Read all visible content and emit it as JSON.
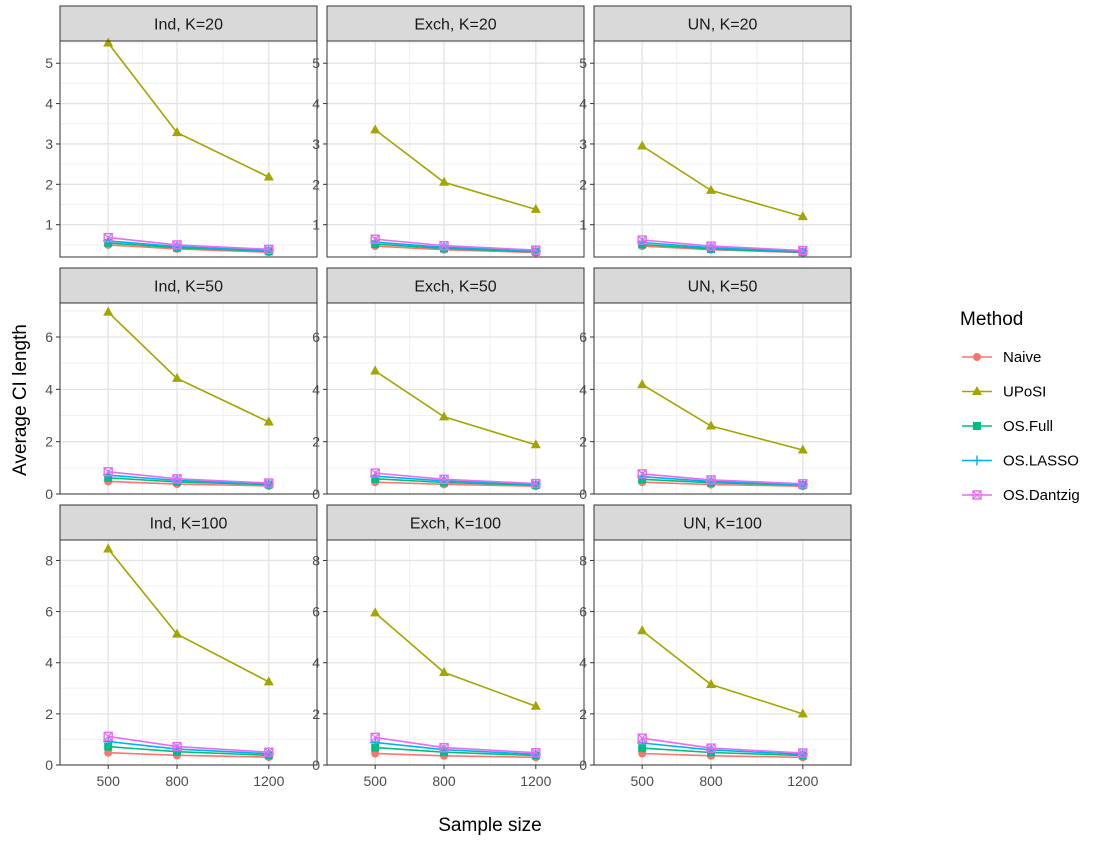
{
  "chart_data": {
    "type": "line",
    "xlabel": "Sample size",
    "ylabel": "Average CI length",
    "x": [
      500,
      800,
      1200
    ],
    "legend": {
      "title": "Method",
      "placement": "right",
      "items": [
        "Naive",
        "UPoSI",
        "OS.Full",
        "OS.LASSO",
        "OS.Dantzig"
      ]
    },
    "colors": {
      "Naive": "#F8766D",
      "UPoSI": "#A3A500",
      "OS.Full": "#00BF7D",
      "OS.LASSO": "#00B0F6",
      "OS.Dantzig": "#E76BF3"
    },
    "markers": {
      "Naive": "circle",
      "UPoSI": "triangle",
      "OS.Full": "square",
      "OS.LASSO": "plus",
      "OS.Dantzig": "boxed-cross"
    },
    "grid": true,
    "rows": [
      {
        "ylim": [
          0.2,
          5.55
        ],
        "ybreaks": [
          1,
          2,
          3,
          4,
          5
        ],
        "panels": [
          {
            "title": "Ind, K=20",
            "series": [
              {
                "name": "Naive",
                "values": [
                  0.5,
                  0.4,
                  0.32
                ]
              },
              {
                "name": "UPoSI",
                "values": [
                  5.5,
                  3.28,
                  2.18
                ]
              },
              {
                "name": "OS.Full",
                "values": [
                  0.55,
                  0.43,
                  0.34
                ]
              },
              {
                "name": "OS.LASSO",
                "values": [
                  0.6,
                  0.46,
                  0.36
                ]
              },
              {
                "name": "OS.Dantzig",
                "values": [
                  0.68,
                  0.5,
                  0.39
                ]
              }
            ]
          },
          {
            "title": "Exch, K=20",
            "series": [
              {
                "name": "Naive",
                "values": [
                  0.47,
                  0.38,
                  0.31
                ]
              },
              {
                "name": "UPoSI",
                "values": [
                  3.35,
                  2.05,
                  1.38
                ]
              },
              {
                "name": "OS.Full",
                "values": [
                  0.52,
                  0.41,
                  0.33
                ]
              },
              {
                "name": "OS.LASSO",
                "values": [
                  0.57,
                  0.44,
                  0.35
                ]
              },
              {
                "name": "OS.Dantzig",
                "values": [
                  0.64,
                  0.48,
                  0.37
                ]
              }
            ]
          },
          {
            "title": "UN, K=20",
            "series": [
              {
                "name": "Naive",
                "values": [
                  0.47,
                  0.38,
                  0.31
                ]
              },
              {
                "name": "UPoSI",
                "values": [
                  2.95,
                  1.85,
                  1.2
                ]
              },
              {
                "name": "OS.Full",
                "values": [
                  0.51,
                  0.4,
                  0.32
                ]
              },
              {
                "name": "OS.LASSO",
                "values": [
                  0.56,
                  0.43,
                  0.34
                ]
              },
              {
                "name": "OS.Dantzig",
                "values": [
                  0.62,
                  0.47,
                  0.36
                ]
              }
            ]
          }
        ]
      },
      {
        "ylim": [
          0,
          7.3
        ],
        "ybreaks": [
          0,
          2,
          4,
          6
        ],
        "panels": [
          {
            "title": "Ind, K=50",
            "series": [
              {
                "name": "Naive",
                "values": [
                  0.48,
                  0.38,
                  0.31
                ]
              },
              {
                "name": "UPoSI",
                "values": [
                  6.95,
                  4.42,
                  2.75
                ]
              },
              {
                "name": "OS.Full",
                "values": [
                  0.62,
                  0.46,
                  0.36
                ]
              },
              {
                "name": "OS.LASSO",
                "values": [
                  0.72,
                  0.52,
                  0.38
                ]
              },
              {
                "name": "OS.Dantzig",
                "values": [
                  0.85,
                  0.58,
                  0.42
                ]
              }
            ]
          },
          {
            "title": "Exch, K=50",
            "series": [
              {
                "name": "Naive",
                "values": [
                  0.45,
                  0.37,
                  0.3
                ]
              },
              {
                "name": "UPoSI",
                "values": [
                  4.7,
                  2.95,
                  1.88
                ]
              },
              {
                "name": "OS.Full",
                "values": [
                  0.58,
                  0.44,
                  0.34
                ]
              },
              {
                "name": "OS.LASSO",
                "values": [
                  0.68,
                  0.5,
                  0.37
                ]
              },
              {
                "name": "OS.Dantzig",
                "values": [
                  0.8,
                  0.56,
                  0.4
                ]
              }
            ]
          },
          {
            "title": "UN, K=50",
            "series": [
              {
                "name": "Naive",
                "values": [
                  0.45,
                  0.36,
                  0.3
                ]
              },
              {
                "name": "UPoSI",
                "values": [
                  4.18,
                  2.6,
                  1.68
                ]
              },
              {
                "name": "OS.Full",
                "values": [
                  0.56,
                  0.43,
                  0.34
                ]
              },
              {
                "name": "OS.LASSO",
                "values": [
                  0.66,
                  0.48,
                  0.36
                ]
              },
              {
                "name": "OS.Dantzig",
                "values": [
                  0.77,
                  0.54,
                  0.39
                ]
              }
            ]
          }
        ]
      },
      {
        "ylim": [
          0,
          8.8
        ],
        "ybreaks": [
          0,
          2,
          4,
          6,
          8
        ],
        "panels": [
          {
            "title": "Ind, K=100",
            "series": [
              {
                "name": "Naive",
                "values": [
                  0.48,
                  0.38,
                  0.31
                ]
              },
              {
                "name": "UPoSI",
                "values": [
                  8.45,
                  5.12,
                  3.25
                ]
              },
              {
                "name": "OS.Full",
                "values": [
                  0.72,
                  0.52,
                  0.38
                ]
              },
              {
                "name": "OS.LASSO",
                "values": [
                  0.92,
                  0.62,
                  0.44
                ]
              },
              {
                "name": "OS.Dantzig",
                "values": [
                  1.12,
                  0.72,
                  0.5
                ]
              }
            ]
          },
          {
            "title": "Exch, K=100",
            "series": [
              {
                "name": "Naive",
                "values": [
                  0.45,
                  0.36,
                  0.3
                ]
              },
              {
                "name": "UPoSI",
                "values": [
                  5.95,
                  3.62,
                  2.3
                ]
              },
              {
                "name": "OS.Full",
                "values": [
                  0.68,
                  0.5,
                  0.37
                ]
              },
              {
                "name": "OS.LASSO",
                "values": [
                  0.88,
                  0.6,
                  0.42
                ]
              },
              {
                "name": "OS.Dantzig",
                "values": [
                  1.08,
                  0.68,
                  0.48
                ]
              }
            ]
          },
          {
            "title": "UN, K=100",
            "series": [
              {
                "name": "Naive",
                "values": [
                  0.45,
                  0.36,
                  0.3
                ]
              },
              {
                "name": "UPoSI",
                "values": [
                  5.25,
                  3.15,
                  2.0
                ]
              },
              {
                "name": "OS.Full",
                "values": [
                  0.66,
                  0.49,
                  0.37
                ]
              },
              {
                "name": "OS.LASSO",
                "values": [
                  0.86,
                  0.59,
                  0.42
                ]
              },
              {
                "name": "OS.Dantzig",
                "values": [
                  1.05,
                  0.66,
                  0.47
                ]
              }
            ]
          }
        ]
      }
    ]
  }
}
